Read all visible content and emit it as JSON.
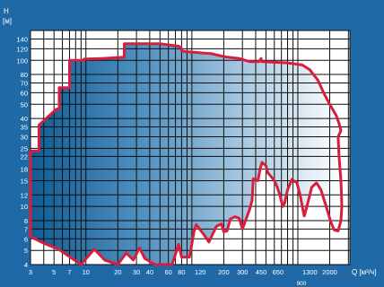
{
  "chart_data": {
    "type": "area",
    "ylabel_lines": [
      "H",
      "[м]"
    ],
    "xlabel": "Q [м³/ч]",
    "x_tick_labels": [
      "3",
      "5",
      "7",
      "10",
      "20",
      "30",
      "40",
      "60",
      "80",
      "120",
      "200",
      "300",
      "450",
      "650",
      "1300",
      "2000"
    ],
    "x_extra_label": "900",
    "y_tick_labels": [
      "140",
      "120",
      "100",
      "80",
      "70",
      "60",
      "50",
      "40",
      "35",
      "30",
      "25",
      "22",
      "18",
      "15",
      "12",
      "10",
      "8",
      "7",
      "6",
      "5",
      "4"
    ],
    "colors": {
      "background": "#1f6aa6",
      "grid": "#0d0d0d",
      "outline": "#d91d3c",
      "plot": "#ffffff"
    },
    "series": [
      {
        "values": [
          [
            3,
            24
          ],
          [
            3.6,
            24
          ],
          [
            3.6,
            36
          ],
          [
            5.2,
            46
          ],
          [
            5.6,
            47
          ],
          [
            5.6,
            65
          ],
          [
            7,
            65
          ],
          [
            7,
            100
          ],
          [
            9.6,
            100
          ],
          [
            9.6,
            102
          ],
          [
            14,
            103
          ],
          [
            23,
            105
          ],
          [
            23,
            130
          ],
          [
            50,
            130
          ],
          [
            58,
            128
          ],
          [
            75,
            125
          ],
          [
            79,
            122
          ],
          [
            80,
            117
          ],
          [
            85,
            115
          ],
          [
            100,
            114
          ],
          [
            130,
            112
          ],
          [
            155,
            111
          ],
          [
            190,
            107
          ],
          [
            220,
            105
          ],
          [
            280,
            103
          ],
          [
            350,
            98
          ],
          [
            430,
            98
          ],
          [
            450,
            103
          ],
          [
            455,
            98
          ],
          [
            600,
            97
          ],
          [
            800,
            96
          ],
          [
            1100,
            93
          ],
          [
            1300,
            86
          ],
          [
            1550,
            73
          ],
          [
            1750,
            60
          ],
          [
            2000,
            50
          ],
          [
            2300,
            42
          ],
          [
            2450,
            37
          ],
          [
            2550,
            33
          ],
          [
            2400,
            30
          ],
          [
            2450,
            22
          ],
          [
            2550,
            15
          ],
          [
            2580,
            12
          ],
          [
            2600,
            10
          ],
          [
            2550,
            8
          ],
          [
            2400,
            6.8
          ],
          [
            2200,
            6.9
          ],
          [
            2050,
            7.8
          ],
          [
            1850,
            10
          ],
          [
            1650,
            13
          ],
          [
            1500,
            14.5
          ],
          [
            1350,
            13.5
          ],
          [
            1280,
            11.5
          ],
          [
            1200,
            9.6
          ],
          [
            1150,
            8.6
          ],
          [
            1100,
            10
          ],
          [
            1050,
            12
          ],
          [
            980,
            14.5
          ],
          [
            880,
            15.3
          ],
          [
            800,
            13
          ],
          [
            750,
            10.5
          ],
          [
            720,
            10
          ],
          [
            680,
            11.8
          ],
          [
            640,
            13.5
          ],
          [
            600,
            15
          ],
          [
            560,
            16
          ],
          [
            520,
            17
          ],
          [
            500,
            19
          ],
          [
            460,
            20
          ],
          [
            440,
            18
          ],
          [
            420,
            15
          ],
          [
            380,
            15.5
          ],
          [
            370,
            11
          ],
          [
            350,
            9.5
          ],
          [
            300,
            7
          ],
          [
            280,
            8.3
          ],
          [
            255,
            8.5
          ],
          [
            230,
            8.2
          ],
          [
            215,
            6.8
          ],
          [
            200,
            6.7
          ],
          [
            190,
            7.6
          ],
          [
            170,
            7.3
          ],
          [
            145,
            5.7
          ],
          [
            130,
            6.4
          ],
          [
            115,
            7.2
          ],
          [
            110,
            7.5
          ],
          [
            105,
            6.8
          ],
          [
            95,
            4.5
          ],
          [
            80,
            4.5
          ],
          [
            75,
            5.5
          ],
          [
            65,
            4
          ],
          [
            58,
            4
          ],
          [
            45,
            4
          ],
          [
            36,
            4.4
          ],
          [
            32,
            5.2
          ],
          [
            28,
            4.3
          ],
          [
            24,
            4.8
          ],
          [
            20,
            4
          ],
          [
            15,
            4.3
          ],
          [
            12,
            5.1
          ],
          [
            9,
            4
          ],
          [
            5.5,
            5.1
          ],
          [
            4,
            5.6
          ],
          [
            3,
            6.2
          ]
        ]
      }
    ]
  }
}
